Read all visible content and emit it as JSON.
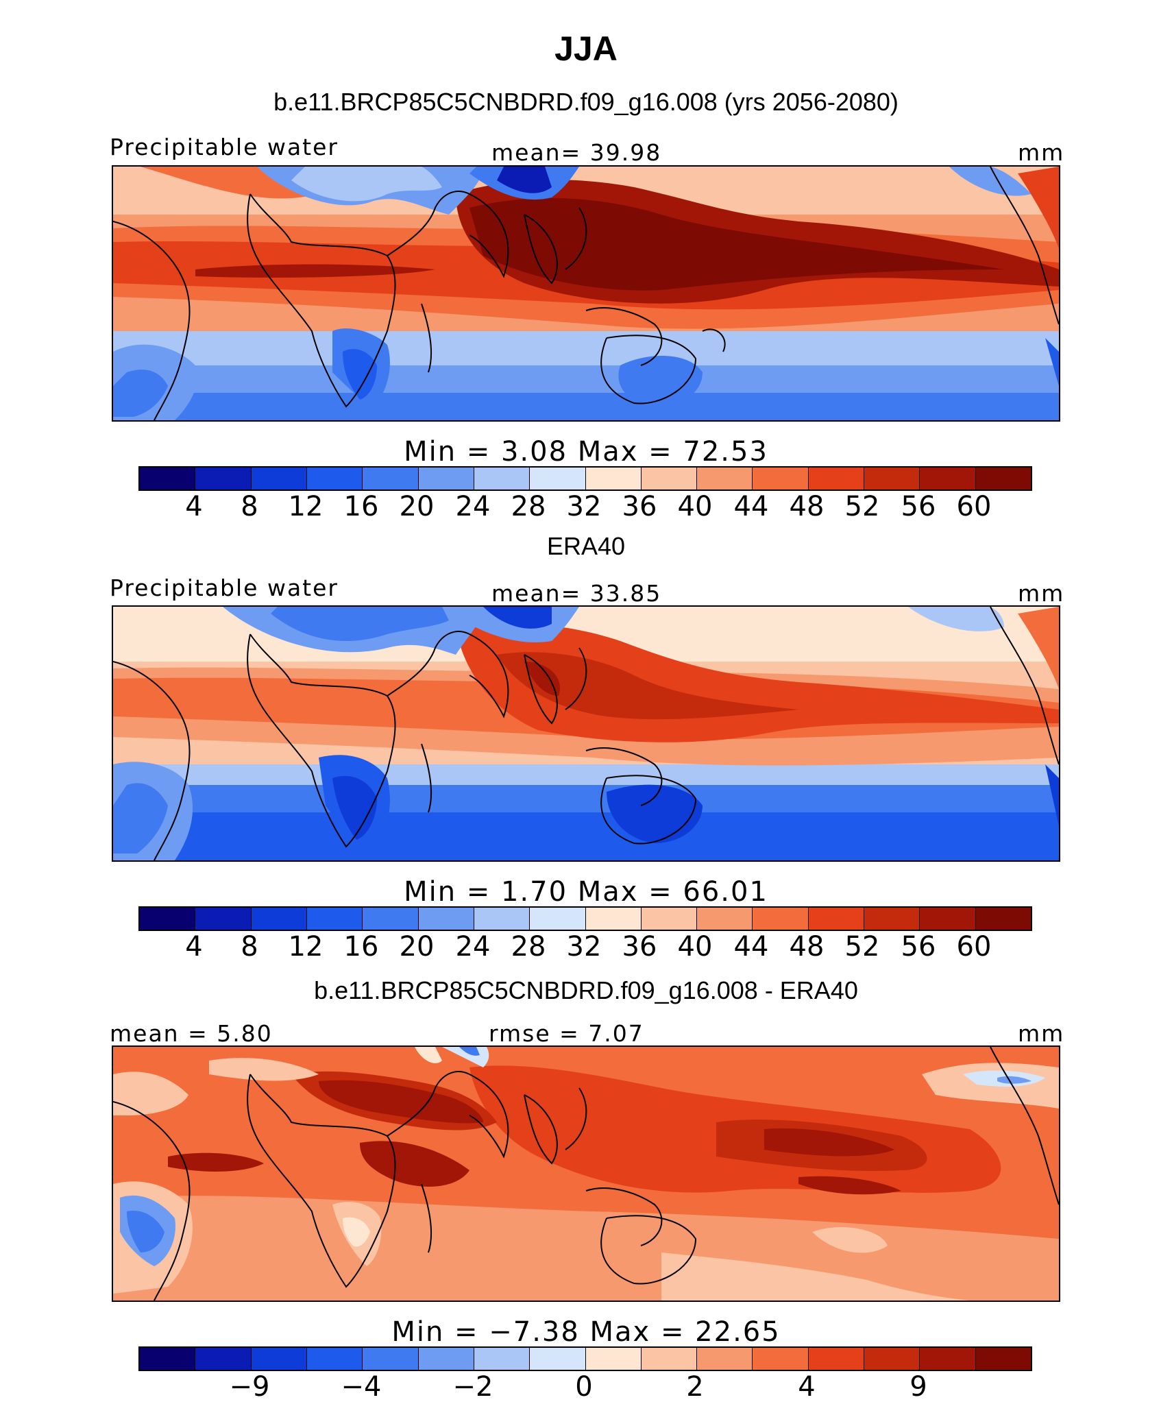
{
  "figure": {
    "title": "JJA",
    "panels": [
      {
        "title": "b.e11.BRCP85C5CNBDRD.f09_g16.008 (yrs 2056-2080)",
        "left_label": "Precipitable water",
        "center_label": "mean=   39.98",
        "units": "mm",
        "minmax": "Min  =     3.08  Max  =    72.53",
        "colorbar_ticks": [
          "4",
          "8",
          "12",
          "16",
          "20",
          "24",
          "28",
          "32",
          "36",
          "40",
          "44",
          "48",
          "52",
          "56",
          "60"
        ]
      },
      {
        "title": "ERA40",
        "left_label": "Precipitable water",
        "center_label": "mean=   33.85",
        "units": "mm",
        "minmax": "Min  =     1.70  Max  =    66.01",
        "colorbar_ticks": [
          "4",
          "8",
          "12",
          "16",
          "20",
          "24",
          "28",
          "32",
          "36",
          "40",
          "44",
          "48",
          "52",
          "56",
          "60"
        ]
      },
      {
        "title": "b.e11.BRCP85C5CNBDRD.f09_g16.008 - ERA40",
        "left_label": "mean =    5.80",
        "center_label": "rmse  =     7.07",
        "units": "mm",
        "minmax": "Min  =   −7.38  Max  =    22.65",
        "colorbar_ticks": [
          "−9",
          "−4",
          "−2",
          "0",
          "2",
          "4",
          "9"
        ]
      }
    ],
    "palette": [
      "#08006e",
      "#0a1cb4",
      "#0d3cd8",
      "#1e5aec",
      "#3f7af0",
      "#6e9cf2",
      "#a9c6f6",
      "#d6e6fa",
      "#fde7d2",
      "#fbc4a4",
      "#f7996f",
      "#f26c3c",
      "#e4401a",
      "#c42a0c",
      "#a11606",
      "#7e0a04"
    ]
  }
}
